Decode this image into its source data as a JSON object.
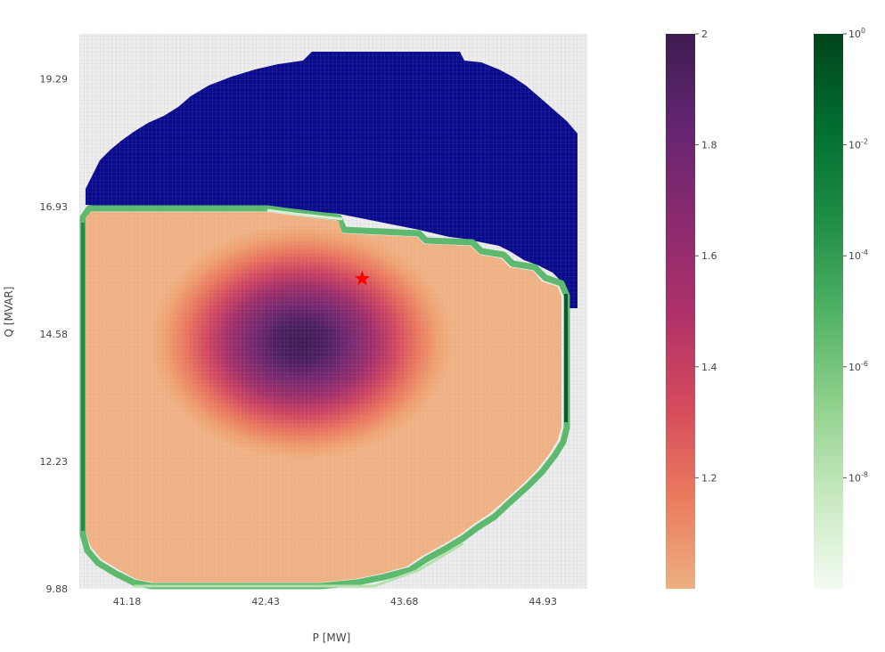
{
  "chart_data": {
    "type": "heatmap",
    "xlabel": "P [MW]",
    "ylabel": "Q [MVAR]",
    "x_ticks": [
      "41.18",
      "42.43",
      "43.68",
      "44.93"
    ],
    "y_ticks": [
      "19.29",
      "16.93",
      "14.58",
      "12.23",
      "9.88"
    ],
    "xlim": [
      40.75,
      45.33
    ],
    "ylim": [
      9.88,
      20.12
    ],
    "grid": true,
    "layers": [
      {
        "role": "infeasible region",
        "color": "#0a0a8c",
        "region": "upper part of the disk, above the feasible region",
        "extent": {
          "p": [
            40.75,
            45.2
          ],
          "q": [
            14.2,
            19.5
          ]
        }
      },
      {
        "role": "feasible region",
        "colormap": "magma_r (light orange to dark purple)",
        "value_range": [
          1.0,
          2.0
        ],
        "peak": {
          "p": 42.95,
          "q": 14.3,
          "value": 2.0
        },
        "extent": {
          "p": [
            40.75,
            45.12
          ],
          "q": [
            9.88,
            16.7
          ]
        }
      },
      {
        "role": "boundary",
        "colormap": "Greens (log scale)",
        "value_range": [
          1e-10,
          1
        ],
        "location": "thin band along the edge of the feasible region"
      }
    ],
    "marker": {
      "symbol": "star",
      "color": "#ff0000",
      "p": 43.3,
      "q": 15.6
    }
  },
  "colorbar_linear": {
    "ticks": [
      "2",
      "1.8",
      "1.6",
      "1.4",
      "1.2"
    ],
    "tick_values": [
      2.0,
      1.8,
      1.6,
      1.4,
      1.2
    ],
    "range": [
      1.0,
      2.0
    ],
    "colors": [
      "#edb081",
      "#ea7a5d",
      "#d4495c",
      "#ad3169",
      "#8a2a70",
      "#642570",
      "#3d1c51"
    ]
  },
  "colorbar_log": {
    "ticks": [
      {
        "base": "10",
        "exp": "0",
        "value": 0
      },
      {
        "base": "10",
        "exp": "-2",
        "value": -2
      },
      {
        "base": "10",
        "exp": "-4",
        "value": -4
      },
      {
        "base": "10",
        "exp": "-6",
        "value": -6
      },
      {
        "base": "10",
        "exp": "-8",
        "value": -8
      }
    ],
    "range_exp": [
      -10,
      0
    ],
    "colors": [
      "#f4fbf1",
      "#c7e9c0",
      "#8fd18b",
      "#4fb264",
      "#1e8d45",
      "#006e2f",
      "#00441b"
    ]
  }
}
